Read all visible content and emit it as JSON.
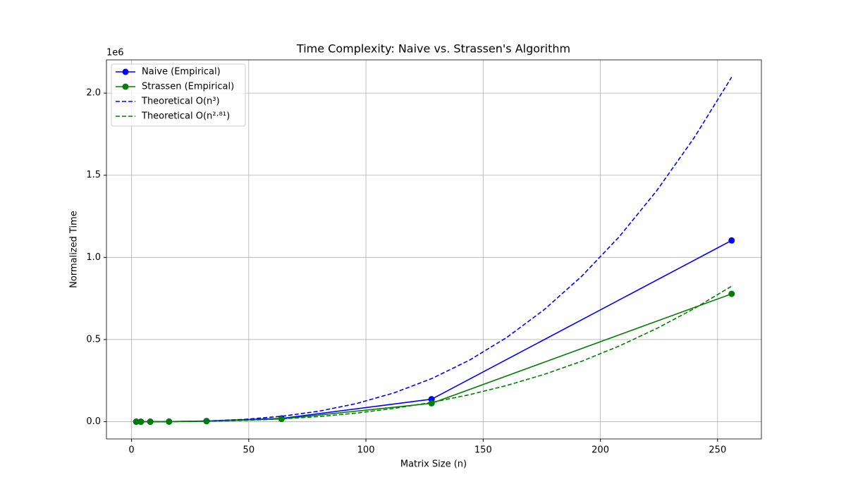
{
  "chart_data": {
    "type": "line",
    "title": "Time Complexity: Naive vs. Strassen's Algorithm",
    "x_label": "Matrix Size (n)",
    "y_label": "Normalized Time",
    "y_offset_label": "1e6",
    "xlim": [
      -10.7,
      268.7
    ],
    "ylim": [
      -104858,
      2202010
    ],
    "xticks": [
      0,
      50,
      100,
      150,
      200,
      250
    ],
    "yticks": [
      {
        "value": 0,
        "label": "0.0"
      },
      {
        "value": 500000,
        "label": "0.5"
      },
      {
        "value": 1000000,
        "label": "1.0"
      },
      {
        "value": 1500000,
        "label": "1.5"
      },
      {
        "value": 2000000,
        "label": "2.0"
      }
    ],
    "grid": true,
    "legend": "upper left",
    "series": [
      {
        "name": "Naive (Empirical)",
        "color": "#0000ff",
        "dashed": false,
        "marker": true,
        "x": [
          2,
          4,
          8,
          16,
          32,
          64,
          128,
          256
        ],
        "values": [
          1,
          8,
          64,
          512,
          4096,
          20000,
          137000,
          1103000
        ]
      },
      {
        "name": "Strassen (Empirical)",
        "color": "#008000",
        "dashed": false,
        "marker": true,
        "x": [
          2,
          4,
          8,
          16,
          32,
          64,
          128,
          256
        ],
        "values": [
          1,
          7,
          49,
          343,
          3000,
          17000,
          112000,
          778000
        ]
      },
      {
        "name": "Theoretical O(n³)",
        "color": "#0000ff",
        "dashed": true,
        "marker": false,
        "x": [
          2,
          16,
          32,
          48,
          64,
          80,
          96,
          112,
          128,
          144,
          160,
          176,
          192,
          208,
          224,
          240,
          256
        ],
        "values": [
          1,
          512,
          4096,
          13824,
          32768,
          64000,
          110592,
          175616,
          262144,
          373248,
          512000,
          681472,
          884736,
          1124864,
          1404928,
          1728000,
          2097152
        ]
      },
      {
        "name": "Theoretical O(n²·⁸¹)",
        "color": "#008000",
        "dashed": true,
        "marker": false,
        "x": [
          2,
          16,
          32,
          48,
          64,
          80,
          96,
          112,
          128,
          144,
          160,
          176,
          192,
          208,
          224,
          240,
          256
        ],
        "values": [
          1.2,
          341,
          2393,
          7475,
          16760,
          31430,
          52400,
          80850,
          117650,
          163800,
          220200,
          287800,
          367600,
          460400,
          566900,
          688200,
          825000
        ]
      }
    ]
  }
}
